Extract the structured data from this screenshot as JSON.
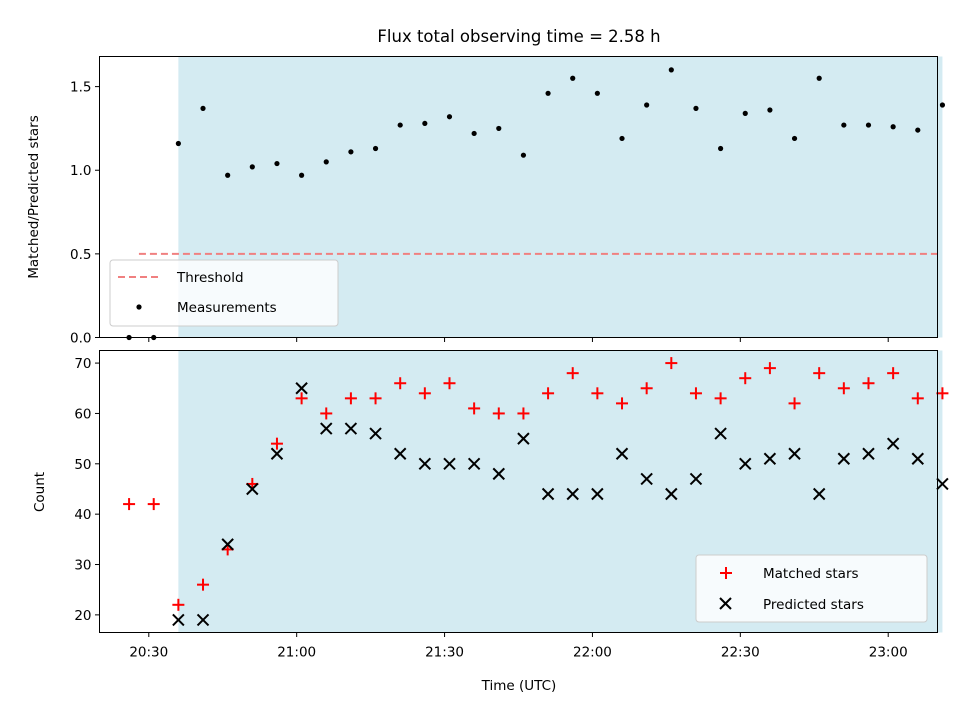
{
  "chart_data": [
    {
      "type": "scatter",
      "title": "Flux total observing time = 2.58 h",
      "xlabel": "",
      "ylabel": "Matched/Predicted stars",
      "ylim": [
        0,
        1.68
      ],
      "yticks": [
        "0.0",
        "0.5",
        "1.0",
        "1.5"
      ],
      "ytick_values": [
        0,
        0.5,
        1.0,
        1.5
      ],
      "xlim": [
        "20:20",
        "23:10"
      ],
      "grid": false,
      "legend_position": "lower-left",
      "observing_window": [
        "20:36",
        "23:11"
      ],
      "shade_color": "#add8e6",
      "threshold": {
        "name": "Threshold",
        "value": 0.5,
        "x_start": "20:28",
        "x_end": "23:10",
        "color": "#f08080",
        "style": "dashed"
      },
      "series": [
        {
          "name": "Measurements",
          "color": "#000000",
          "marker": "dot",
          "x": [
            "20:26",
            "20:31",
            "20:36",
            "20:41",
            "20:46",
            "20:51",
            "20:56",
            "21:01",
            "21:06",
            "21:11",
            "21:16",
            "21:21",
            "21:26",
            "21:31",
            "21:36",
            "21:41",
            "21:46",
            "21:51",
            "21:56",
            "22:01",
            "22:06",
            "22:11",
            "22:16",
            "22:21",
            "22:26",
            "22:31",
            "22:36",
            "22:41",
            "22:46",
            "22:51",
            "22:56",
            "23:01",
            "23:06",
            "23:11"
          ],
          "y": [
            0.0,
            0.0,
            1.16,
            1.37,
            0.97,
            1.02,
            1.04,
            0.97,
            1.05,
            1.11,
            1.13,
            1.27,
            1.28,
            1.32,
            1.22,
            1.25,
            1.09,
            1.46,
            1.55,
            1.46,
            1.19,
            1.39,
            1.6,
            1.37,
            1.13,
            1.34,
            1.36,
            1.19,
            1.55,
            1.27,
            1.27,
            1.26,
            1.24,
            1.39
          ]
        }
      ]
    },
    {
      "type": "scatter",
      "title": "",
      "xlabel": "Time (UTC)",
      "ylabel": "Count",
      "ylim": [
        16.5,
        72.5
      ],
      "yticks": [
        "20",
        "30",
        "40",
        "50",
        "60",
        "70"
      ],
      "ytick_values": [
        20,
        30,
        40,
        50,
        60,
        70
      ],
      "xlim": [
        "20:20",
        "23:10"
      ],
      "xticks": [
        "20:30",
        "21:00",
        "21:30",
        "22:00",
        "22:30",
        "23:00"
      ],
      "grid": false,
      "legend_position": "lower-right",
      "observing_window": [
        "20:36",
        "23:11"
      ],
      "shade_color": "#add8e6",
      "series": [
        {
          "name": "Matched stars",
          "color": "#ff0000",
          "marker": "plus",
          "x": [
            "20:26",
            "20:31",
            "20:36",
            "20:41",
            "20:46",
            "20:51",
            "20:56",
            "21:01",
            "21:06",
            "21:11",
            "21:16",
            "21:21",
            "21:26",
            "21:31",
            "21:36",
            "21:41",
            "21:46",
            "21:51",
            "21:56",
            "22:01",
            "22:06",
            "22:11",
            "22:16",
            "22:21",
            "22:26",
            "22:31",
            "22:36",
            "22:41",
            "22:46",
            "22:51",
            "22:56",
            "23:01",
            "23:06",
            "23:11"
          ],
          "y": [
            42,
            42,
            22,
            26,
            33,
            46,
            54,
            63,
            60,
            63,
            63,
            66,
            64,
            66,
            61,
            60,
            60,
            64,
            68,
            64,
            62,
            65,
            70,
            64,
            63,
            67,
            69,
            62,
            68,
            65,
            66,
            68,
            63,
            64
          ]
        },
        {
          "name": "Predicted stars",
          "color": "#000000",
          "marker": "x",
          "x": [
            "20:36",
            "20:41",
            "20:46",
            "20:51",
            "20:56",
            "21:01",
            "21:06",
            "21:11",
            "21:16",
            "21:21",
            "21:26",
            "21:31",
            "21:36",
            "21:41",
            "21:46",
            "21:51",
            "21:56",
            "22:01",
            "22:06",
            "22:11",
            "22:16",
            "22:21",
            "22:26",
            "22:31",
            "22:36",
            "22:41",
            "22:46",
            "22:51",
            "22:56",
            "23:01",
            "23:06",
            "23:11"
          ],
          "y": [
            19,
            19,
            34,
            45,
            52,
            65,
            57,
            57,
            56,
            52,
            50,
            50,
            50,
            48,
            55,
            44,
            44,
            44,
            52,
            47,
            44,
            47,
            56,
            50,
            51,
            52,
            44,
            51,
            52,
            54,
            51,
            46
          ]
        }
      ]
    }
  ]
}
